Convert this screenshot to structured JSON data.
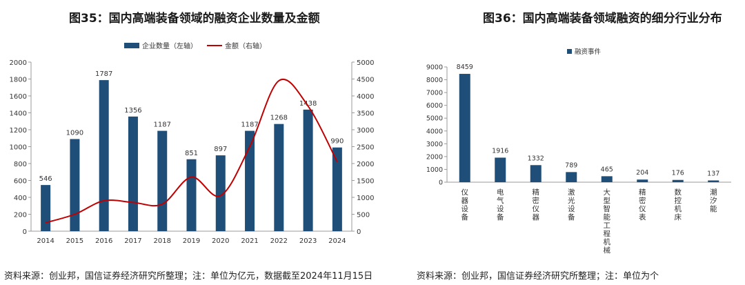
{
  "chart_data": [
    {
      "type": "bar",
      "title": "图35：国内高端装备领域的融资企业数量及金额",
      "categories": [
        "2014",
        "2015",
        "2016",
        "2017",
        "2018",
        "2019",
        "2020",
        "2021",
        "2022",
        "2023",
        "2024"
      ],
      "series": [
        {
          "name": "企业数量（左轴）",
          "type": "bar",
          "axis": "left",
          "values": [
            546,
            1090,
            1787,
            1356,
            1187,
            851,
            897,
            1187,
            1268,
            1438,
            990
          ],
          "color": "#1f4e79"
        },
        {
          "name": "金额（右轴）",
          "type": "line",
          "axis": "right",
          "values": [
            250,
            500,
            900,
            850,
            800,
            1600,
            1050,
            2500,
            4450,
            3700,
            2050
          ],
          "color": "#c00000"
        }
      ],
      "ylim_left": [
        0,
        2000
      ],
      "yticks_left": [
        "0",
        "200",
        "400",
        "600",
        "800",
        "1000",
        "1200",
        "1400",
        "1600",
        "1800",
        "2000"
      ],
      "ylim_right": [
        0,
        5000
      ],
      "yticks_right": [
        "0",
        "500",
        "1000",
        "1500",
        "2000",
        "2500",
        "3000",
        "3500",
        "4000",
        "4500",
        "5000"
      ],
      "legend": "top-center",
      "source": "资料来源：创业邦，国信证券经济研究所整理；注：单位为亿元，数据截至2024年11月15日"
    },
    {
      "type": "bar",
      "title": "图36：国内高端装备领域融资的细分行业分布",
      "categories": [
        "仪器设备",
        "电气设备",
        "精密仪器",
        "激光设备",
        "大型智能工程机械",
        "精密仪表",
        "数控机床",
        "潮汐能"
      ],
      "series": [
        {
          "name": "融资事件",
          "values": [
            8459,
            1916,
            1332,
            789,
            465,
            204,
            176,
            137
          ],
          "color": "#1f4e79"
        }
      ],
      "ylim": [
        0,
        9000
      ],
      "yticks": [
        "0",
        "1000",
        "2000",
        "3000",
        "4000",
        "5000",
        "6000",
        "7000",
        "8000",
        "9000"
      ],
      "legend": "top-center",
      "source": "资料来源：创业邦，国信证券经济研究所整理；注：单位为个"
    }
  ]
}
